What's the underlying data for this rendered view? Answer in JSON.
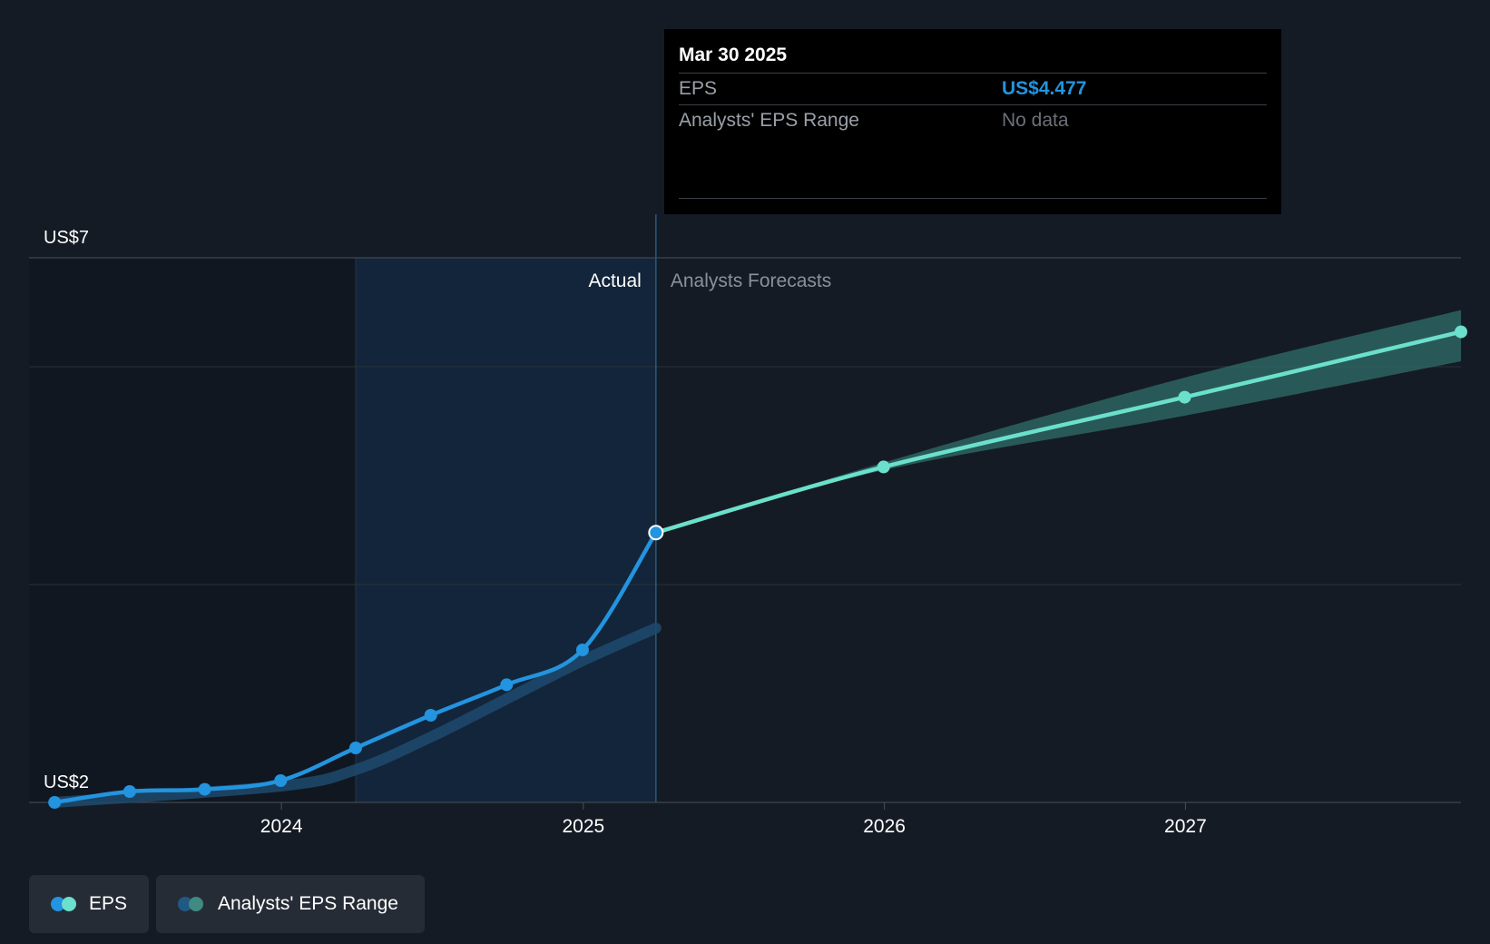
{
  "tooltip": {
    "date": "Mar 30 2025",
    "rows": [
      {
        "label": "EPS",
        "value": "US$4.477"
      },
      {
        "label": "Analysts' EPS Range",
        "value": "No data"
      }
    ]
  },
  "region_labels": {
    "actual": "Actual",
    "forecast": "Analysts Forecasts"
  },
  "legend": [
    {
      "label": "EPS",
      "colors": [
        "#2394df",
        "#6be0cc"
      ]
    },
    {
      "label": "Analysts' EPS Range",
      "colors": [
        "#1f5a85",
        "#3f8a83"
      ]
    }
  ],
  "colors": {
    "background": "#151b24",
    "eps_actual": "#2394df",
    "eps_forecast": "#6be0cc",
    "range_actual": "#1f4a6e",
    "range_forecast": "#2f6f6a",
    "shade": "#13253a"
  },
  "chart_data": {
    "type": "line",
    "y_tick_labels": [
      "US$7",
      "US$2"
    ],
    "ylim": [
      2,
      7
    ],
    "x_tick_labels": [
      "2024",
      "2025",
      "2026",
      "2027"
    ],
    "x_ticks": [
      "2024-01-01",
      "2025-01-01",
      "2026-01-01",
      "2027-01-01"
    ],
    "xlim": [
      "2023-03-01",
      "2027-12-01"
    ],
    "highlight_range": [
      "2024-03-31",
      "2025-03-30"
    ],
    "divider_date": "2025-03-30",
    "gridlines_y": [
      7,
      6,
      4,
      2
    ],
    "series": [
      {
        "name": "EPS",
        "segment": "actual",
        "x": [
          "2023-04-01",
          "2023-07-01",
          "2023-09-30",
          "2023-12-31",
          "2024-03-31",
          "2024-06-30",
          "2024-09-30",
          "2024-12-31",
          "2025-03-30"
        ],
        "values": [
          2.0,
          2.1,
          2.12,
          2.2,
          2.5,
          2.8,
          3.08,
          3.4,
          4.477
        ]
      },
      {
        "name": "EPS",
        "segment": "forecast",
        "x": [
          "2025-03-30",
          "2025-12-31",
          "2026-12-31",
          "2027-12-01"
        ],
        "values": [
          4.477,
          5.08,
          5.72,
          6.32
        ]
      },
      {
        "name": "Analysts' EPS Range",
        "segment": "actual",
        "x": [
          "2023-04-01",
          "2023-12-31",
          "2024-03-31",
          "2024-06-30",
          "2024-09-30",
          "2024-12-31",
          "2025-03-30"
        ],
        "values": [
          2.0,
          2.15,
          2.3,
          2.6,
          2.95,
          3.3,
          3.6
        ]
      },
      {
        "name": "Analysts' EPS Range",
        "segment": "forecast",
        "x": [
          "2025-03-30",
          "2025-12-31",
          "2026-12-31",
          "2027-12-01"
        ],
        "low": [
          4.477,
          5.05,
          5.55,
          6.05
        ],
        "high": [
          4.477,
          5.12,
          5.9,
          6.52
        ]
      }
    ]
  }
}
